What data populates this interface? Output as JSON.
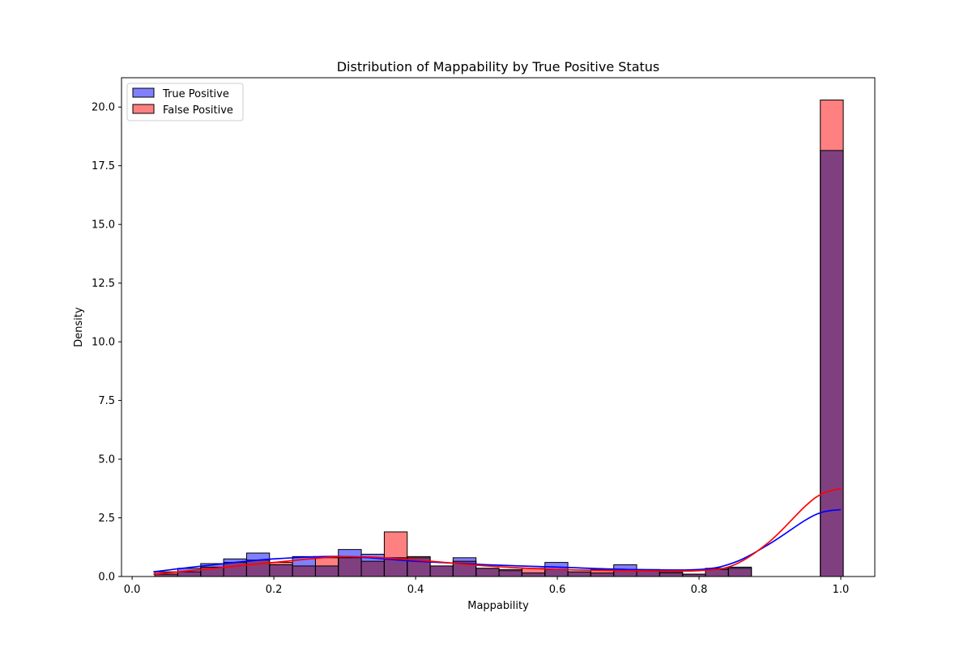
{
  "chart_data": {
    "type": "bar",
    "title": "Distribution of Mappability by True Positive Status",
    "xlabel": "Mappability",
    "ylabel": "Density",
    "xlim": [
      -0.015,
      1.048
    ],
    "ylim": [
      0,
      21.25
    ],
    "xticks": [
      0.0,
      0.2,
      0.4,
      0.6,
      0.8,
      1.0
    ],
    "xtick_labels": [
      "0.0",
      "0.2",
      "0.4",
      "0.6",
      "0.8",
      "1.0"
    ],
    "yticks": [
      0.0,
      2.5,
      5.0,
      7.5,
      10.0,
      12.5,
      15.0,
      17.5,
      20.0
    ],
    "ytick_labels": [
      "0.0",
      "2.5",
      "5.0",
      "7.5",
      "10.0",
      "12.5",
      "15.0",
      "17.5",
      "20.0"
    ],
    "grid": false,
    "legend_position": "upper left",
    "bin_edges": [
      0.032,
      0.0644,
      0.0968,
      0.1291,
      0.1615,
      0.1939,
      0.2263,
      0.2587,
      0.291,
      0.3234,
      0.3558,
      0.3882,
      0.4206,
      0.4529,
      0.4853,
      0.5177,
      0.5501,
      0.5825,
      0.6149,
      0.6472,
      0.6796,
      0.712,
      0.7444,
      0.7768,
      0.8091,
      0.8415,
      0.8739,
      0.9063,
      0.9387,
      0.9711,
      1.0035
    ],
    "series": [
      {
        "name": "True Positive",
        "fill": "#8080ff",
        "line": "#0000ff",
        "values": [
          0.1,
          0.35,
          0.55,
          0.75,
          1.0,
          0.5,
          0.85,
          0.45,
          1.15,
          0.95,
          0.8,
          0.8,
          0.45,
          0.8,
          0.35,
          0.25,
          0.15,
          0.6,
          0.2,
          0.15,
          0.5,
          0.25,
          0.15,
          0.1,
          0.35,
          0.4,
          0.0,
          0.0,
          0.0,
          18.15
        ],
        "kde_x": [
          0.03,
          0.1,
          0.2,
          0.3,
          0.4,
          0.5,
          0.6,
          0.7,
          0.8,
          0.85,
          0.9,
          0.95,
          0.975,
          1.0
        ],
        "kde_y": [
          0.2,
          0.45,
          0.75,
          0.85,
          0.65,
          0.5,
          0.4,
          0.3,
          0.3,
          0.6,
          1.4,
          2.4,
          2.75,
          2.85
        ]
      },
      {
        "name": "False Positive",
        "fill": "#ff8080",
        "line": "#ff0000",
        "values": [
          0.2,
          0.2,
          0.4,
          0.6,
          0.7,
          0.6,
          0.45,
          0.8,
          0.8,
          0.65,
          1.9,
          0.85,
          0.45,
          0.65,
          0.35,
          0.3,
          0.35,
          0.3,
          0.2,
          0.3,
          0.3,
          0.3,
          0.2,
          0.1,
          0.3,
          0.35,
          0.0,
          0.0,
          0.0,
          20.3
        ],
        "kde_x": [
          0.03,
          0.1,
          0.2,
          0.3,
          0.4,
          0.5,
          0.6,
          0.7,
          0.8,
          0.85,
          0.9,
          0.95,
          0.975,
          1.0
        ],
        "kde_y": [
          0.1,
          0.3,
          0.6,
          0.85,
          0.7,
          0.45,
          0.3,
          0.25,
          0.25,
          0.5,
          1.5,
          3.0,
          3.55,
          3.75
        ]
      }
    ]
  }
}
